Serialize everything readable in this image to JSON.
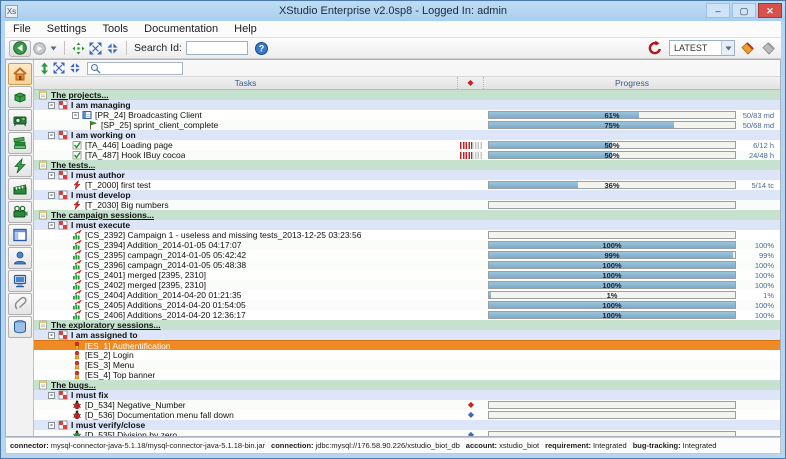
{
  "window": {
    "title": "XStudio Enterprise v2.0sp8 - Logged In: admin"
  },
  "window_controls": {
    "minimize": "–",
    "maximize": "▢",
    "close": "✕"
  },
  "menu": {
    "items": [
      "File",
      "Settings",
      "Tools",
      "Documentation",
      "Help"
    ]
  },
  "toolbar": {
    "search_label": "Search Id:",
    "search_value": "",
    "version_select": "LATEST",
    "filter_value": ""
  },
  "colors": {
    "titlebar": "#aacfee",
    "selection_orange": "#f08a24",
    "progress_fill": "#7aaccc",
    "section_green": "#c6e2ce",
    "group_blue": "#dde6f8",
    "refresh_red": "#b01818"
  },
  "sidebar": {
    "items": [
      {
        "name": "home",
        "icon": "home",
        "active": true
      },
      {
        "name": "components",
        "icon": "brick",
        "active": false
      },
      {
        "name": "projector",
        "icon": "projector",
        "active": false
      },
      {
        "name": "library",
        "icon": "books",
        "active": false
      },
      {
        "name": "tests",
        "icon": "bolt",
        "active": false
      },
      {
        "name": "campaigns",
        "icon": "clapper",
        "active": false
      },
      {
        "name": "sessions",
        "icon": "camera",
        "active": false
      },
      {
        "name": "reports",
        "icon": "layout",
        "active": false
      },
      {
        "name": "users",
        "icon": "user",
        "active": false
      },
      {
        "name": "agents",
        "icon": "terminal",
        "active": false
      },
      {
        "name": "attachments",
        "icon": "clip",
        "active": false
      },
      {
        "name": "database",
        "icon": "db",
        "active": false
      }
    ]
  },
  "table": {
    "columns": {
      "tasks": "Tasks",
      "priority": "◆",
      "progress": "Progress"
    }
  },
  "rows": [
    {
      "type": "section",
      "icon": "notepad",
      "label": "The projects..."
    },
    {
      "type": "group",
      "icon": "checker",
      "label": "I am managing"
    },
    {
      "type": "item",
      "level": 2,
      "box": true,
      "icon": "project",
      "label": "[PR_24] Broadcasting Client",
      "bar": {
        "pct": 61,
        "text": "61%"
      },
      "right": "50/83 md"
    },
    {
      "type": "item",
      "level": 3,
      "icon": "flag",
      "label": "[SP_25] sprint_client_complete",
      "bar": {
        "pct": 75,
        "text": "75%"
      },
      "right": "50/68 md"
    },
    {
      "type": "group",
      "icon": "checker",
      "label": "I am working on"
    },
    {
      "type": "item",
      "level": 2,
      "icon": "task",
      "label": "[TA_446] Loading page",
      "priority": "bars",
      "bar": {
        "pct": 50,
        "text": "50%"
      },
      "right": "6/12 h"
    },
    {
      "type": "item",
      "level": 2,
      "icon": "task",
      "label": "[TA_487] Hook IBuy cocoa",
      "priority": "bars",
      "bar": {
        "pct": 50,
        "text": "50%"
      },
      "right": "24/48 h"
    },
    {
      "type": "section",
      "icon": "notepad",
      "label": "The tests..."
    },
    {
      "type": "group",
      "icon": "checker",
      "label": "I must author"
    },
    {
      "type": "item",
      "level": 2,
      "icon": "test",
      "label": "[T_2000] first test",
      "bar": {
        "pct": 36,
        "text": "36%"
      },
      "right": "5/14 tc"
    },
    {
      "type": "group",
      "icon": "checker",
      "label": "I must develop"
    },
    {
      "type": "item",
      "level": 2,
      "icon": "test",
      "label": "[T_2030] Big numbers",
      "bar": {
        "pct": 0,
        "text": ""
      },
      "right": ""
    },
    {
      "type": "section",
      "icon": "notepad",
      "label": "The campaign sessions..."
    },
    {
      "type": "group",
      "icon": "checker",
      "label": "I must execute"
    },
    {
      "type": "item",
      "level": 2,
      "icon": "campaign",
      "label": "[CS_2392] Campaign 1 - useless and missing tests_2013-12-25 03:23:56",
      "bar": {
        "pct": 0,
        "text": ""
      },
      "right": ""
    },
    {
      "type": "item",
      "level": 2,
      "icon": "campaign",
      "label": "[CS_2394] Addition_2014-01-05 04:17:07",
      "bar": {
        "pct": 100,
        "text": "100%"
      },
      "right": "100%"
    },
    {
      "type": "item",
      "level": 2,
      "icon": "campaign",
      "label": "[CS_2395] campagn_2014-01-05 05:42:42",
      "bar": {
        "pct": 99,
        "text": "99%"
      },
      "right": "99%"
    },
    {
      "type": "item",
      "level": 2,
      "icon": "campaign",
      "label": "[CS_2396] campagn_2014-01-05 05:48:38",
      "bar": {
        "pct": 100,
        "text": "100%"
      },
      "right": "100%"
    },
    {
      "type": "item",
      "level": 2,
      "icon": "campaign",
      "label": "[CS_2401] merged [2395, 2310]",
      "bar": {
        "pct": 100,
        "text": "100%"
      },
      "right": "100%"
    },
    {
      "type": "item",
      "level": 2,
      "icon": "campaign",
      "label": "[CS_2402] merged [2395, 2310]",
      "bar": {
        "pct": 100,
        "text": "100%"
      },
      "right": "100%"
    },
    {
      "type": "item",
      "level": 2,
      "icon": "campaign",
      "label": "[CS_2404] Addition_2014-04-20 01:21:35",
      "bar": {
        "pct": 1,
        "text": "1%"
      },
      "right": "1%"
    },
    {
      "type": "item",
      "level": 2,
      "icon": "campaign",
      "label": "[CS_2405] Additions_2014-04-20 01:54:05",
      "bar": {
        "pct": 100,
        "text": "100%"
      },
      "right": "100%"
    },
    {
      "type": "item",
      "level": 2,
      "icon": "campaign",
      "label": "[CS_2406] Additions_2014-04-20 12:36:17",
      "bar": {
        "pct": 100,
        "text": "100%"
      },
      "right": "100%"
    },
    {
      "type": "section",
      "icon": "notepad",
      "label": "The exploratory sessions..."
    },
    {
      "type": "group",
      "icon": "checker",
      "label": "I am assigned to"
    },
    {
      "type": "item",
      "level": 2,
      "icon": "explo",
      "label": "[ES_1] Authentification",
      "selected": true
    },
    {
      "type": "item",
      "level": 2,
      "icon": "explo",
      "label": "[ES_2] Login"
    },
    {
      "type": "item",
      "level": 2,
      "icon": "explo",
      "label": "[ES_3] Menu"
    },
    {
      "type": "item",
      "level": 2,
      "icon": "explo",
      "label": "[ES_4] Top banner"
    },
    {
      "type": "section",
      "icon": "notepad",
      "label": "The bugs..."
    },
    {
      "type": "group",
      "icon": "checker",
      "label": "I must fix"
    },
    {
      "type": "item",
      "level": 2,
      "icon": "bug-red",
      "label": "[D_534] Negative_Number",
      "priority": "diamond-red",
      "bar": {
        "pct": 0,
        "text": ""
      },
      "right": ""
    },
    {
      "type": "item",
      "level": 2,
      "icon": "bug-red",
      "label": "[D_536] Documentation menu fall down",
      "priority": "diamond-blue",
      "bar": {
        "pct": 0,
        "text": ""
      },
      "right": ""
    },
    {
      "type": "group",
      "icon": "checker",
      "label": "I must verify/close"
    },
    {
      "type": "item",
      "level": 2,
      "icon": "bug-green",
      "label": "[D_535] Division by zero",
      "priority": "diamond-blue",
      "bar": {
        "pct": 0,
        "text": ""
      },
      "right": ""
    }
  ],
  "statusbar": {
    "segments": [
      {
        "label": "connector",
        "value": "mysql-connector-java-5.1.18/mysql-connector-java-5.1.18-bin.jar"
      },
      {
        "label": "connection",
        "value": "jdbc:mysql://176.58.90.226/xstudio_biot_db"
      },
      {
        "label": "account",
        "value": "xstudio_biot"
      },
      {
        "label": "requirement",
        "value": "Integrated"
      },
      {
        "label": "bug-tracking",
        "value": "Integrated"
      }
    ]
  }
}
